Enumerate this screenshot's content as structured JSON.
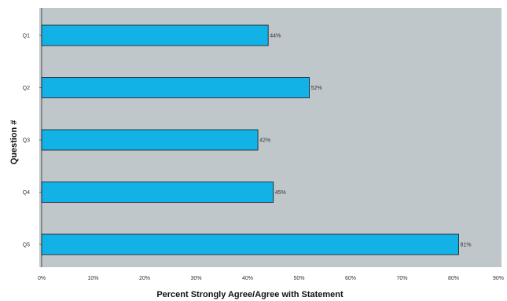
{
  "chart_data": {
    "type": "bar",
    "orientation": "horizontal",
    "categories": [
      "Q1",
      "Q2",
      "Q3",
      "Q4",
      "Q5"
    ],
    "values": [
      44,
      52,
      42,
      45,
      81
    ],
    "value_labels": [
      "44%",
      "52%",
      "42%",
      "45%",
      "81%"
    ],
    "title": "",
    "xlabel": "Percent Strongly Agree/Agree with Statement",
    "ylabel": "Question #",
    "xlim": [
      0,
      90
    ],
    "xticks": [
      0,
      10,
      20,
      30,
      40,
      50,
      60,
      70,
      80,
      90
    ],
    "xtick_labels": [
      "0%",
      "10%",
      "20%",
      "30%",
      "40%",
      "50%",
      "60%",
      "70%",
      "80%",
      "90%"
    ],
    "grid": false,
    "legend": "none",
    "colors": {
      "plot_background": "#c0c7cb",
      "bar_fill": "#12b1e6",
      "bar_stroke": "#1a1a1a"
    }
  }
}
